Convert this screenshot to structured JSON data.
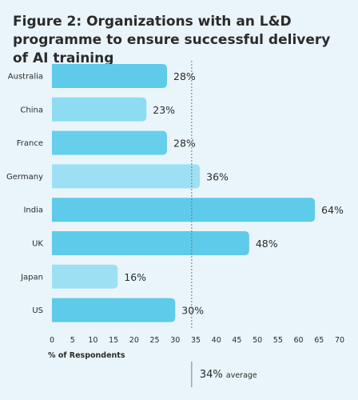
{
  "title": "Figure 2: Organizations with an L&D programme to ensure successful delivery of AI training",
  "chart_data": {
    "type": "bar",
    "orientation": "horizontal",
    "categories": [
      "Australia",
      "China",
      "France",
      "Germany",
      "India",
      "UK",
      "Japan",
      "US"
    ],
    "values": [
      28,
      23,
      28,
      36,
      64,
      48,
      16,
      30
    ],
    "value_labels": [
      "28%",
      "23%",
      "28%",
      "36%",
      "64%",
      "48%",
      "16%",
      "30%"
    ],
    "xlabel": "% of Respondents",
    "xlim": [
      0,
      70
    ],
    "xticks": [
      0,
      5,
      10,
      15,
      20,
      25,
      30,
      35,
      40,
      45,
      50,
      55,
      60,
      65,
      70
    ],
    "average": {
      "value": 34,
      "label": "34%",
      "suffix": "average"
    },
    "colors": {
      "bars": [
        "#5ecbea",
        "#8ddcf2",
        "#66cfec",
        "#9de0f3",
        "#5ecbea",
        "#5ecbea",
        "#9de0f3",
        "#5ecbea"
      ],
      "average_line": "#777777"
    }
  }
}
